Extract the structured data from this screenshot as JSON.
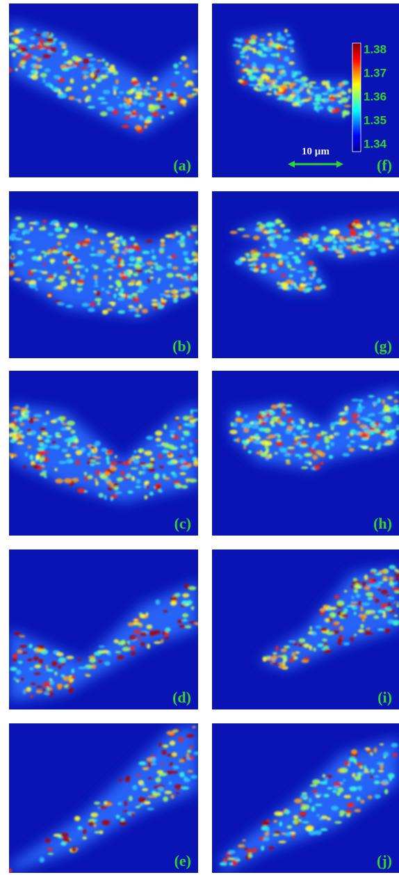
{
  "panels": [
    {
      "label": "(a)"
    },
    {
      "label": "(f)"
    },
    {
      "label": "(b)"
    },
    {
      "label": "(g)"
    },
    {
      "label": "(c)"
    },
    {
      "label": "(h)"
    },
    {
      "label": "(d)"
    },
    {
      "label": "(i)"
    },
    {
      "label": "(e)"
    },
    {
      "label": "(j)"
    }
  ],
  "colorbar": {
    "labels": [
      "1.38",
      "1.37",
      "1.36",
      "1.35",
      "1.34"
    ]
  },
  "scale_bar": {
    "label": "10 µm"
  }
}
